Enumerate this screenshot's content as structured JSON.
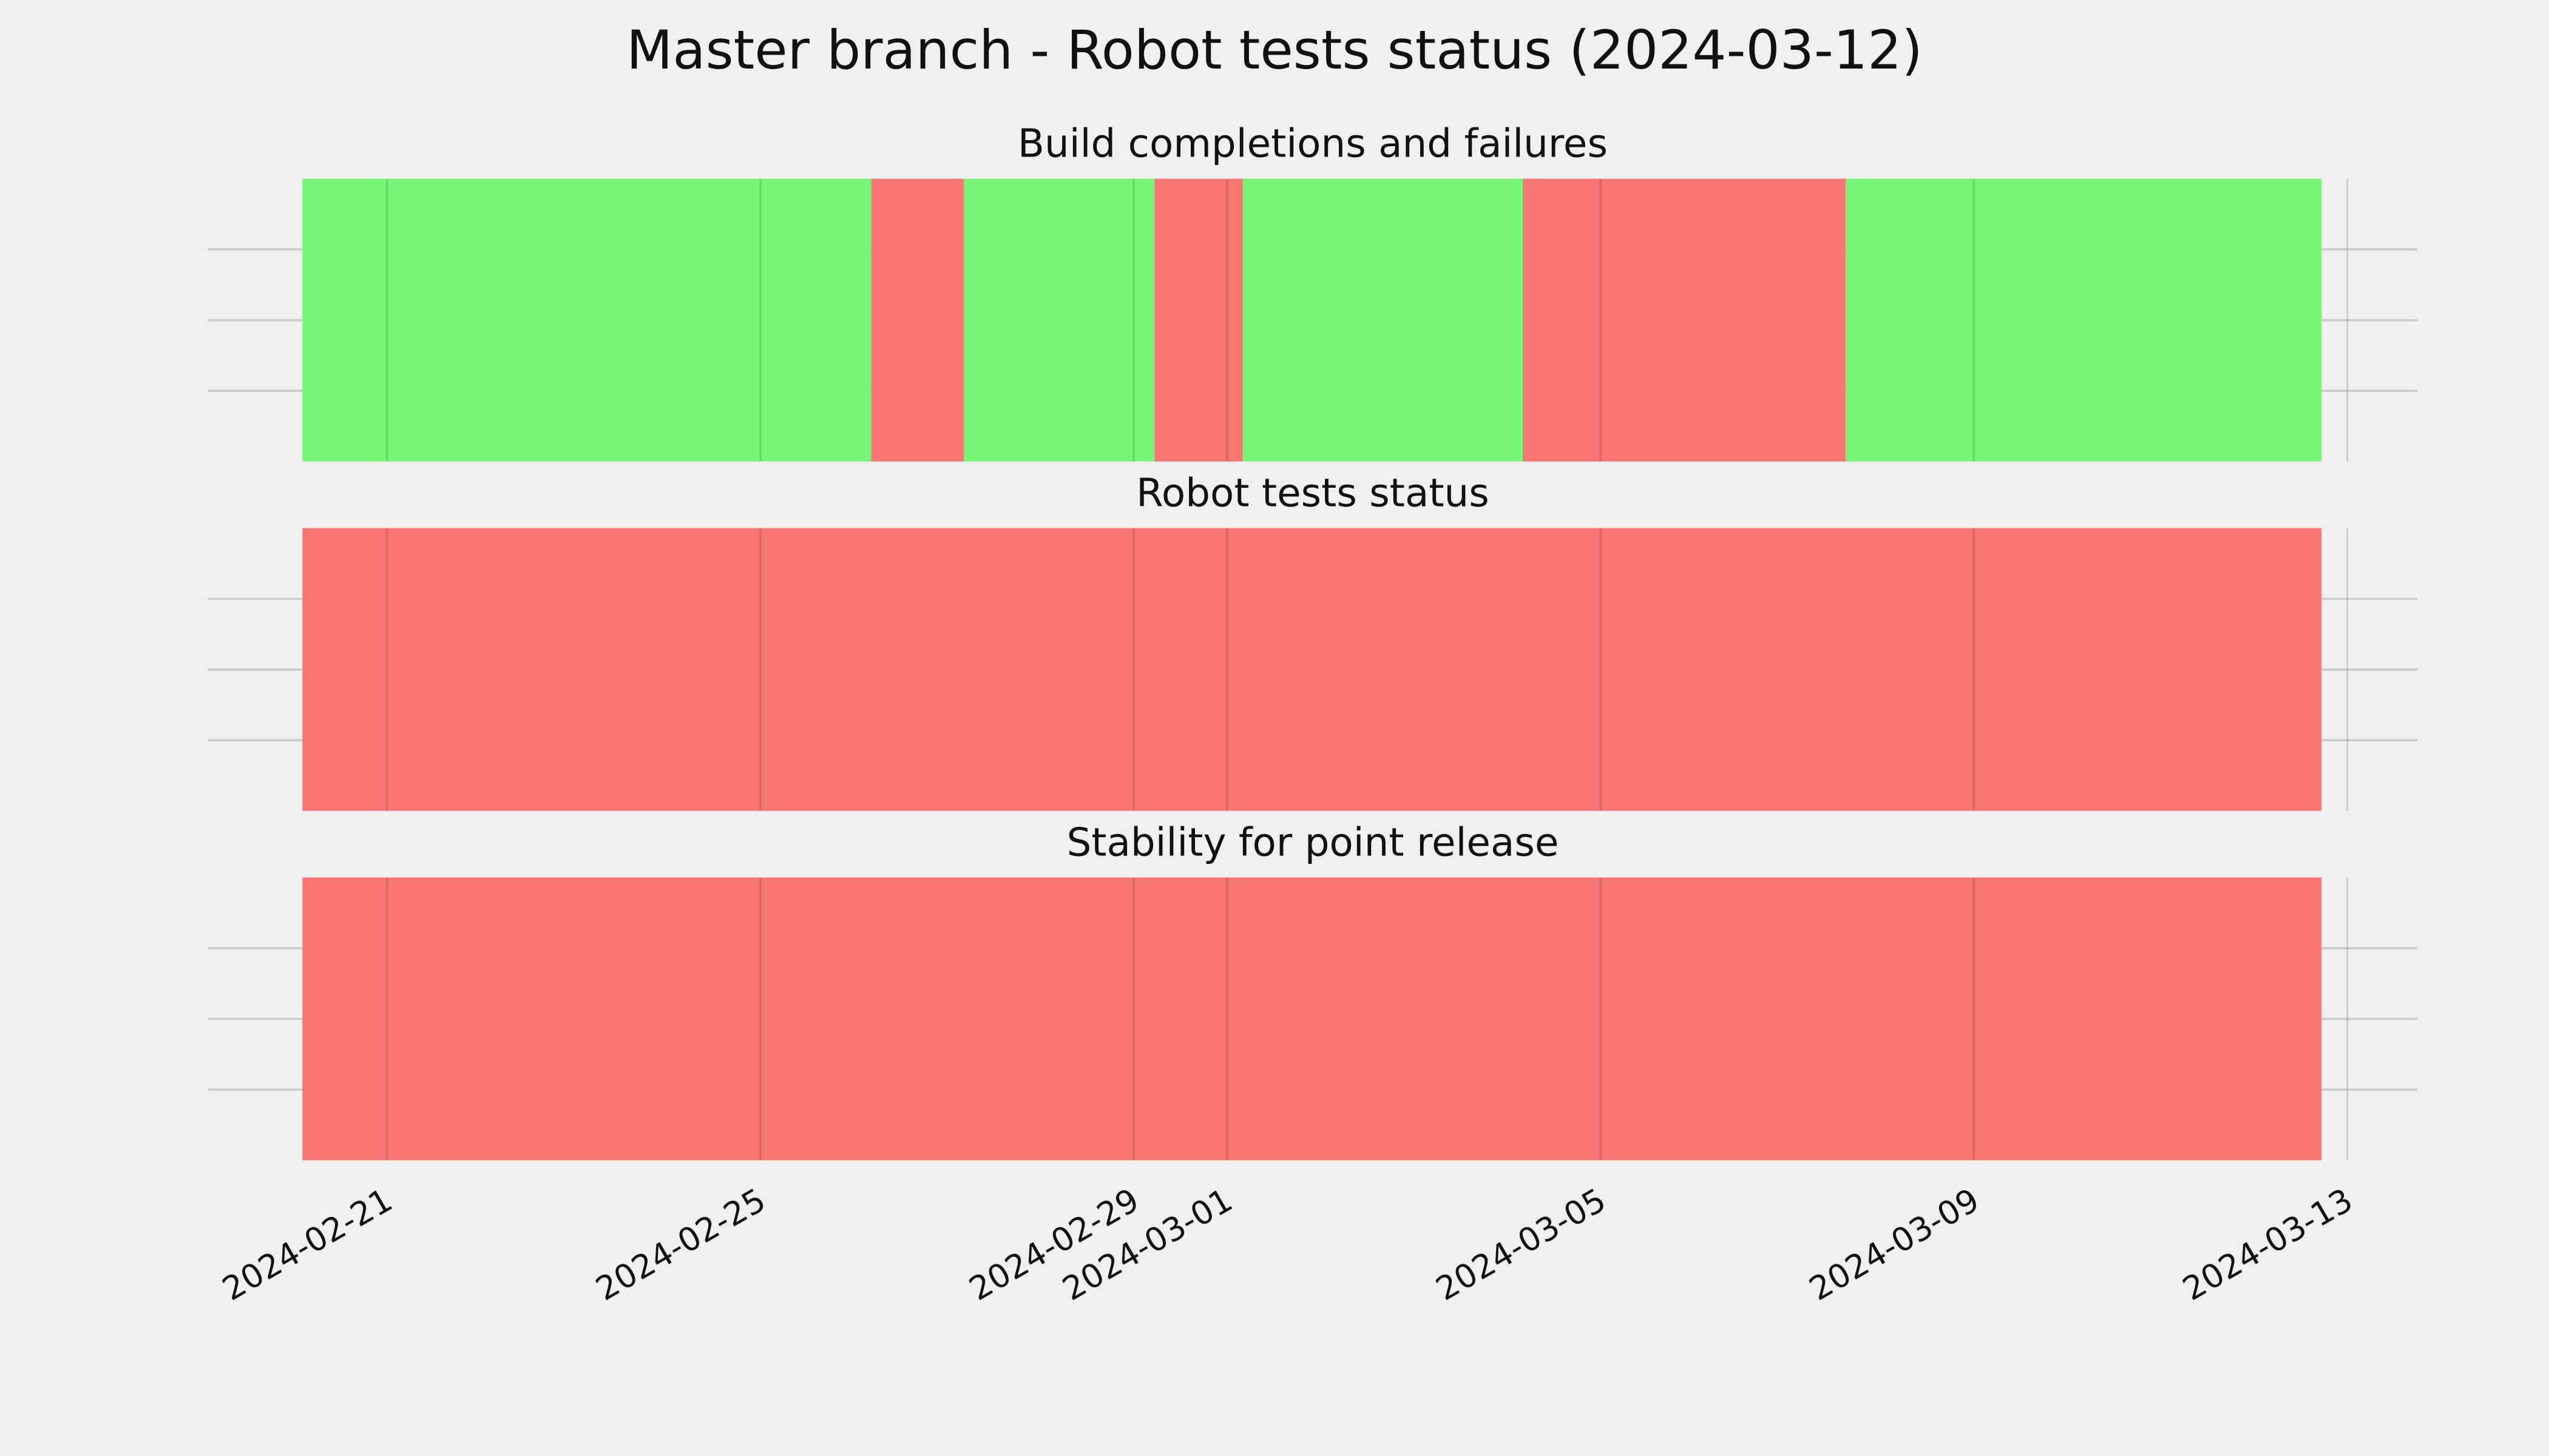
{
  "title": "Master branch - Robot tests status (2024-03-12)",
  "chart_data": [
    {
      "type": "timeline",
      "title": "Build completions and failures",
      "xlim": [
        "2024-02-19T02:00",
        "2024-03-13T18:00"
      ],
      "xticks": [
        "2024-02-21",
        "2024-02-25",
        "2024-02-29",
        "2024-03-01",
        "2024-03-05",
        "2024-03-09",
        "2024-03-13"
      ],
      "grid": true,
      "segments": [
        {
          "start": "2024-02-20T02:15",
          "end": "2024-02-26T04:30",
          "color": "#76f576"
        },
        {
          "start": "2024-02-26T04:30",
          "end": "2024-02-27T04:20",
          "color": "#f77673"
        },
        {
          "start": "2024-02-27T04:20",
          "end": "2024-02-29T05:20",
          "color": "#76f576"
        },
        {
          "start": "2024-02-29T05:20",
          "end": "2024-03-01T04:00",
          "color": "#f77673"
        },
        {
          "start": "2024-03-01T04:00",
          "end": "2024-03-04T04:00",
          "color": "#76f576"
        },
        {
          "start": "2024-03-04T04:00",
          "end": "2024-03-07T15:00",
          "color": "#f77673"
        },
        {
          "start": "2024-03-07T15:00",
          "end": "2024-03-12T17:20",
          "color": "#76f576"
        }
      ]
    },
    {
      "type": "timeline",
      "title": "Robot tests status",
      "xlim": [
        "2024-02-19T02:00",
        "2024-03-13T18:00"
      ],
      "xticks": [
        "2024-02-21",
        "2024-02-25",
        "2024-02-29",
        "2024-03-01",
        "2024-03-05",
        "2024-03-09",
        "2024-03-13"
      ],
      "grid": true,
      "segments": [
        {
          "start": "2024-02-20T02:15",
          "end": "2024-03-12T17:20",
          "color": "#f77673"
        }
      ]
    },
    {
      "type": "timeline",
      "title": "Stability for point release",
      "xlim": [
        "2024-02-19T02:00",
        "2024-03-13T18:00"
      ],
      "xticks": [
        "2024-02-21",
        "2024-02-25",
        "2024-02-29",
        "2024-03-01",
        "2024-03-05",
        "2024-03-09",
        "2024-03-13"
      ],
      "grid": true,
      "segments": [
        {
          "start": "2024-02-20T02:15",
          "end": "2024-03-12T17:20",
          "color": "#f77673"
        }
      ]
    }
  ]
}
